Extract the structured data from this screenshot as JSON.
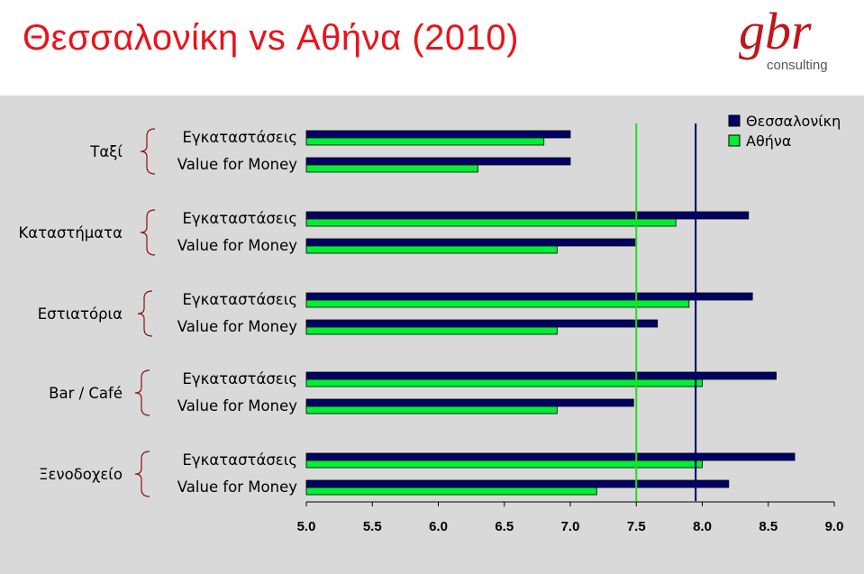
{
  "title": "Θεσσαλονίκη vs Αθήνα (2010)",
  "logo": {
    "text": "gbr",
    "subtext": "consulting",
    "color": "#c0161c",
    "subcolor": "#555555"
  },
  "chart_data": {
    "type": "bar",
    "orientation": "horizontal",
    "groups": [
      "Ταξί",
      "Καταστήματα",
      "Εστιατόρια",
      "Bar / Café",
      "Ξενοδοχείο"
    ],
    "subcategories": [
      "Εγκαταστάσεις",
      "Value for Money"
    ],
    "series": [
      {
        "name": "Θεσσαλονίκη",
        "color": "#000066",
        "values": [
          [
            7.0,
            7.0
          ],
          [
            8.35,
            7.5
          ],
          [
            8.38,
            7.66
          ],
          [
            8.56,
            7.48
          ],
          [
            8.7,
            8.2
          ]
        ]
      },
      {
        "name": "Αθήνα",
        "color": "#00ee33",
        "values": [
          [
            6.8,
            6.3
          ],
          [
            7.8,
            6.9
          ],
          [
            7.9,
            6.9
          ],
          [
            8.0,
            6.9
          ],
          [
            8.0,
            7.2
          ]
        ]
      }
    ],
    "reference_lines": [
      {
        "value": 7.5,
        "color": "#22dd22"
      },
      {
        "value": 7.95,
        "color": "#000066"
      }
    ],
    "xlim": [
      5.0,
      9.0
    ],
    "xticks": [
      "5.0",
      "5.5",
      "6.0",
      "6.5",
      "7.0",
      "7.5",
      "8.0",
      "8.5",
      "9.0"
    ],
    "legend_position": "top-right",
    "grid": false
  }
}
